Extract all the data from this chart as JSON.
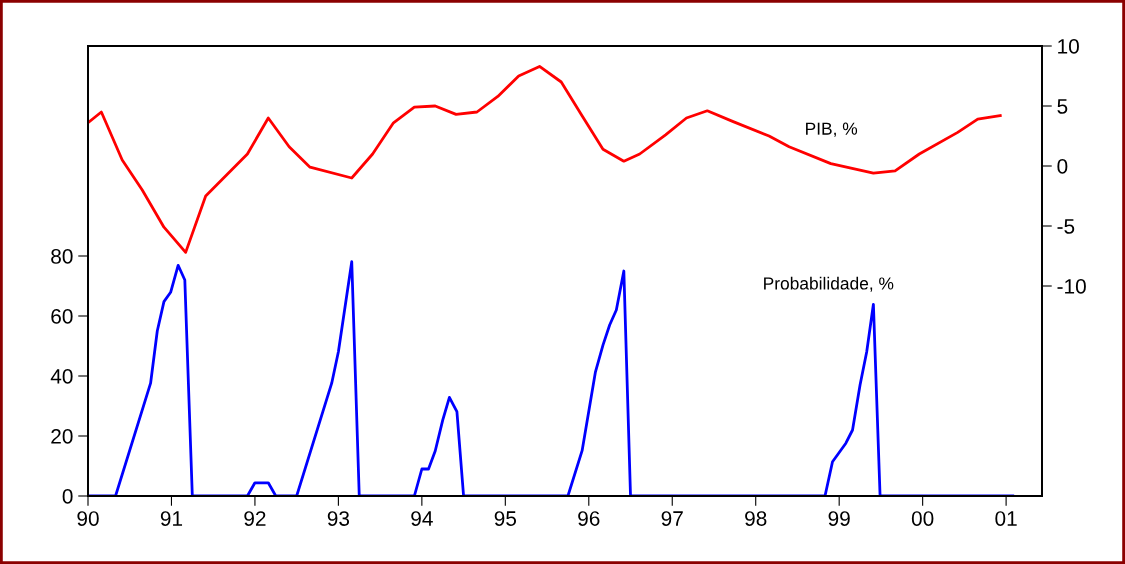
{
  "chart_data": {
    "type": "line",
    "legend": false,
    "grid": false,
    "marker": "none",
    "line_style": "solid",
    "xlim": [
      1990,
      2001.43
    ],
    "xticks": [
      {
        "value": 1990,
        "label": "90"
      },
      {
        "value": 1991,
        "label": "91"
      },
      {
        "value": 1992,
        "label": "92"
      },
      {
        "value": 1993,
        "label": "93"
      },
      {
        "value": 1994,
        "label": "94"
      },
      {
        "value": 1995,
        "label": "95"
      },
      {
        "value": 1996,
        "label": "96"
      },
      {
        "value": 1997,
        "label": "97"
      },
      {
        "value": 1998,
        "label": "98"
      },
      {
        "value": 1999,
        "label": "99"
      },
      {
        "value": 2000,
        "label": "00"
      },
      {
        "value": 2001,
        "label": "01"
      }
    ],
    "ylim": [
      0,
      150
    ],
    "yticks": [
      0,
      20,
      40,
      60,
      80
    ],
    "y2lim": [
      -27.5,
      10
    ],
    "y2ticks": [
      -10,
      -5,
      0,
      5,
      10
    ],
    "series": [
      {
        "name": "PIB, %",
        "color": "#ff0000",
        "axis": "y2",
        "x": [
          1990.0,
          1990.16,
          1990.41,
          1990.65,
          1990.91,
          1991.17,
          1991.41,
          1991.91,
          1992.16,
          1992.41,
          1992.66,
          1993.16,
          1993.41,
          1993.66,
          1993.91,
          1994.16,
          1994.41,
          1994.66,
          1994.91,
          1995.16,
          1995.41,
          1995.67,
          1995.91,
          1996.17,
          1996.42,
          1996.61,
          1996.92,
          1997.17,
          1997.42,
          1997.73,
          1998.16,
          1998.4,
          1998.9,
          1999.41,
          1999.67,
          1999.96,
          2000.42,
          2000.66,
          2000.93
        ],
        "values": [
          3.6,
          4.5,
          0.5,
          -2.0,
          -5.1,
          -7.2,
          -2.5,
          1.0,
          4.0,
          1.6,
          -0.1,
          -1.0,
          1.0,
          3.6,
          4.9,
          5.0,
          4.3,
          4.5,
          5.8,
          7.5,
          8.3,
          7.0,
          4.3,
          1.4,
          0.4,
          1.0,
          2.6,
          4.0,
          4.6,
          3.7,
          2.5,
          1.6,
          0.2,
          -0.6,
          -0.4,
          1.0,
          2.8,
          3.9,
          4.2
        ]
      },
      {
        "name": "Probabilidade, %",
        "color": "#0000ff",
        "x": [
          1990.0,
          1990.33,
          1990.75,
          1990.83,
          1990.91,
          1990.99,
          1991.08,
          1991.16,
          1991.25,
          1991.91,
          1992.0,
          1992.16,
          1992.25,
          1992.5,
          1992.92,
          1993.0,
          1993.16,
          1993.25,
          1993.91,
          1994.0,
          1994.08,
          1994.16,
          1994.25,
          1994.33,
          1994.42,
          1994.5,
          1995.75,
          1995.92,
          1996.08,
          1996.17,
          1996.25,
          1996.33,
          1996.42,
          1996.5,
          1998.83,
          1998.92,
          1999.08,
          1999.16,
          1999.25,
          1999.33,
          1999.41,
          1999.49,
          2001.08
        ],
        "values": [
          0,
          0,
          37.6,
          55,
          64.8,
          67.9,
          76.9,
          72,
          0,
          0,
          4.4,
          4.4,
          0,
          0,
          37.6,
          48.1,
          78.1,
          0,
          0,
          9,
          9,
          15,
          25.3,
          32.9,
          28.1,
          0,
          0,
          15.1,
          41.4,
          50.3,
          57,
          62,
          75,
          0,
          0,
          11.4,
          17.6,
          22,
          37,
          48.1,
          63.9,
          0,
          0
        ]
      }
    ]
  }
}
